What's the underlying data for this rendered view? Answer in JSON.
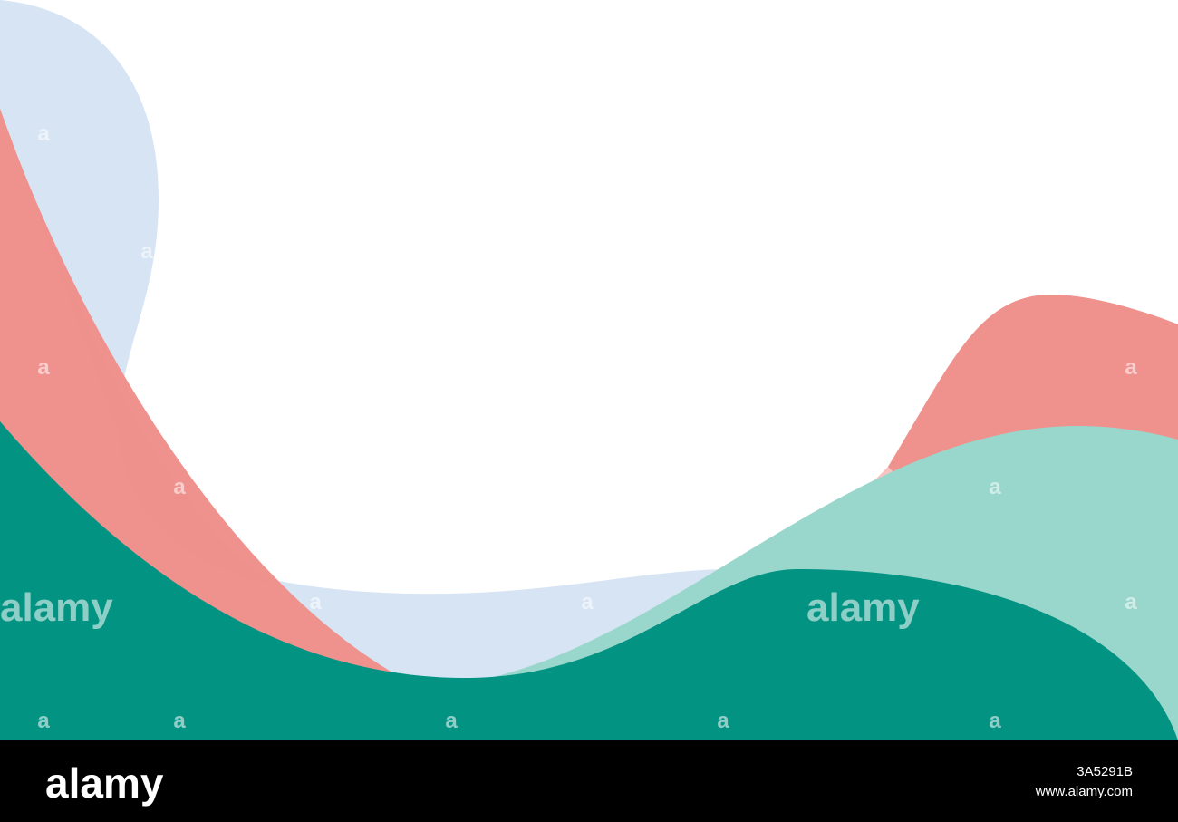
{
  "watermarks": {
    "logos": [
      "alamy",
      "alamy"
    ],
    "marks": [
      "a",
      "a",
      "a",
      "a",
      "a",
      "a",
      "a",
      "a",
      "a",
      "a",
      "a",
      "a",
      "a",
      "a"
    ]
  },
  "footer": {
    "logo": "alamy",
    "image_id": "3A5291B",
    "url": "www.alamy.com"
  }
}
